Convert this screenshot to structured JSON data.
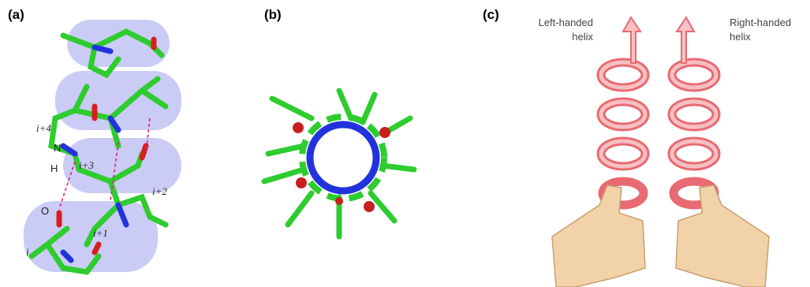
{
  "panel_a": {
    "label": "(a)",
    "annotations": [
      "i+4",
      "N",
      "H",
      "i+3",
      "i+2",
      "O",
      "i+1",
      "i"
    ]
  },
  "panel_b": {
    "label": "(b)"
  },
  "panel_c": {
    "label": "(c)",
    "left_caption": [
      "Left-handed",
      "helix"
    ],
    "right_caption": [
      "Right-handed",
      "helix"
    ]
  }
}
